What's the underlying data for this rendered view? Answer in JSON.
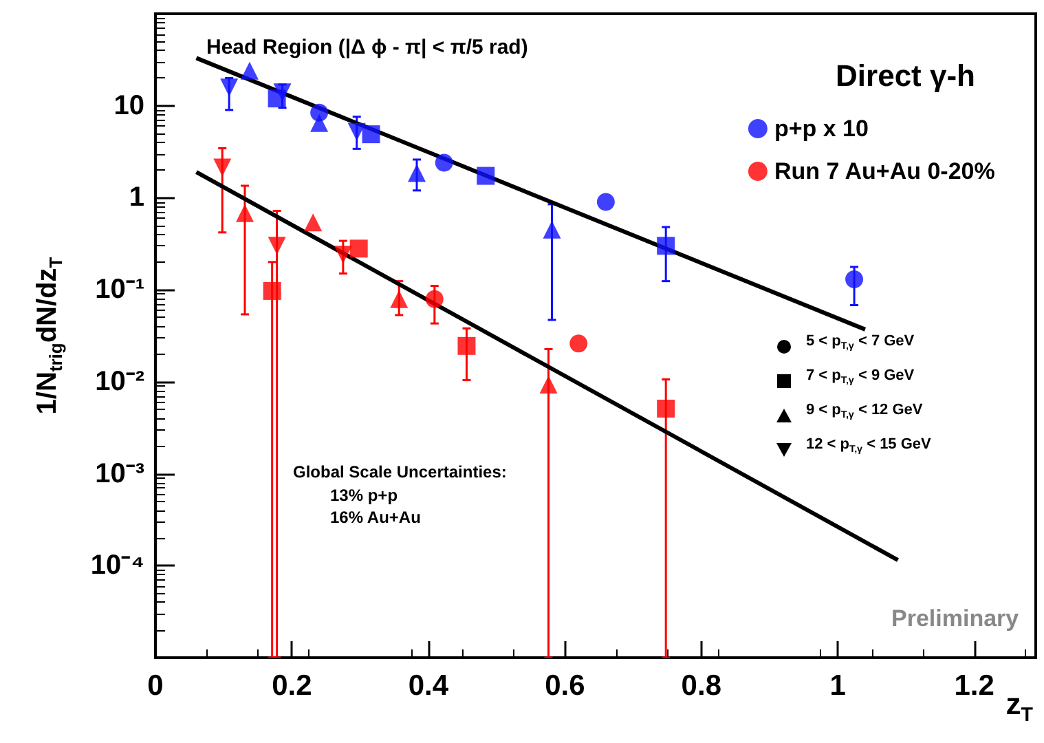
{
  "chart_data": {
    "type": "scatter",
    "title": "Head Region (|Δ ϕ - π| < π/5 rad)",
    "legend_title": "Direct γ-h",
    "xlabel": "z$_{T}$",
    "ylabel": "1/N$_{trig}$dN/dz$_{T}$",
    "xlim": [
      0,
      1.29
    ],
    "xticks": [
      0,
      0.2,
      0.4,
      0.6,
      0.8,
      1,
      1.2
    ],
    "ylim": [
      1e-05,
      100
    ],
    "yticks": [
      {
        "value": 0.0001,
        "label": "10⁻⁴"
      },
      {
        "value": 0.001,
        "label": "10⁻³"
      },
      {
        "value": 0.01,
        "label": "10⁻²"
      },
      {
        "value": 0.1,
        "label": "10⁻¹"
      },
      1,
      10
    ],
    "log": "y",
    "legend": "top right",
    "annotations": [
      "5 < p$_{T,γ}$ < 7 GeV",
      "7 < p$_{T,γ}$ < 9 GeV",
      "9 < p$_{T,γ}$ < 12 GeV",
      "12 < p$_{T,γ}$ < 15 GeV",
      "Global Scale Uncertainties:",
      "13% p+p",
      "16% Au+Au",
      "Preliminary"
    ],
    "series": [
      {
        "name": "p+p x 10",
        "color": "#1010ff",
        "marker": "circle",
        "x": [
          0.24,
          0.423,
          0.66,
          1.024
        ],
        "values": [
          8.4,
          2.4,
          0.9,
          0.13
        ],
        "errors": [
          null,
          null,
          null,
          [
            0.068,
            0.177
          ]
        ]
      },
      {
        "color": "#1010ff",
        "marker": "square",
        "x": [
          0.178,
          0.316,
          0.484,
          0.748
        ],
        "values": [
          12,
          4.9,
          1.73,
          0.3
        ],
        "errors": [
          null,
          null,
          null,
          [
            0.124,
            0.48
          ]
        ]
      },
      {
        "color": "#1010ff",
        "marker": "triangle",
        "x": [
          0.138,
          0.24,
          0.383,
          0.581
        ],
        "values": [
          24,
          6.5,
          1.86,
          0.45
        ],
        "errors": [
          null,
          null,
          [
            1.2,
            2.6
          ],
          [
            0.047,
            0.85
          ]
        ]
      },
      {
        "color": "#1010ff",
        "marker": "triangle-down",
        "x": [
          0.108,
          0.186,
          0.295
        ],
        "values": [
          15.8,
          14,
          5.2
        ],
        "errors": [
          [
            9,
            20
          ],
          [
            9.5,
            17
          ],
          [
            3.4,
            7.6
          ]
        ]
      },
      {
        "name": "Run 7 Au+Au 0-20%",
        "color": "#ff0000",
        "marker": "circle",
        "x": [
          0.409,
          0.62
        ],
        "values": [
          0.079,
          0.026
        ],
        "errors": [
          [
            0.043,
            0.11
          ],
          null
        ]
      },
      {
        "color": "#ff0000",
        "marker": "square",
        "x": [
          0.171,
          0.298,
          0.456,
          0.748
        ],
        "values": [
          0.097,
          0.28,
          0.0245,
          0.0051
        ],
        "errors": [
          [
            1e-05,
            0.2
          ],
          null,
          [
            0.0104,
            0.038
          ],
          [
            1e-05,
            0.0106
          ]
        ]
      },
      {
        "color": "#ff0000",
        "marker": "triangle",
        "x": [
          0.131,
          0.231,
          0.357,
          0.576
        ],
        "values": [
          0.68,
          0.54,
          0.079,
          0.0093
        ],
        "errors": [
          [
            0.054,
            1.35
          ],
          null,
          [
            0.053,
            0.124
          ],
          [
            1e-05,
            0.0226
          ]
        ]
      },
      {
        "color": "#ff0000",
        "marker": "triangle-down",
        "x": [
          0.098,
          0.178,
          0.275
        ],
        "values": [
          2.13,
          0.3,
          0.24
        ],
        "errors": [
          [
            0.42,
            3.45
          ],
          [
            1e-05,
            0.72
          ],
          [
            0.15,
            0.34
          ]
        ]
      },
      {
        "type": "line",
        "color": "#000000",
        "marker": "none",
        "x": [
          0.06,
          1.04
        ],
        "values": [
          33,
          0.037
        ]
      },
      {
        "type": "line",
        "color": "#000000",
        "marker": "none",
        "x": [
          0.06,
          1.088
        ],
        "values": [
          1.9,
          0.000115
        ]
      }
    ]
  }
}
